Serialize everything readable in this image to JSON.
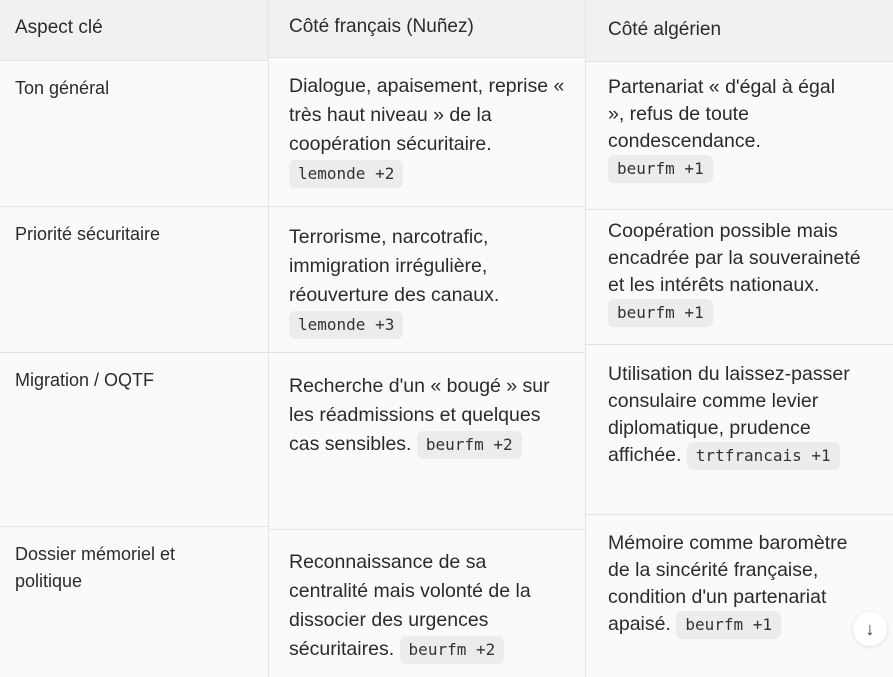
{
  "headers": [
    "Aspect clé",
    "Côté français (Nuñez)",
    "Côté algérien"
  ],
  "rows": [
    {
      "aspect": "Ton général",
      "fr": "Dialogue, apaisement, reprise « très haut niveau » de la coopération sécuritaire.",
      "fr_cite": "lemonde +2",
      "dz": "Partenariat « d'égal à égal », refus de toute condescendance.",
      "dz_cite": "beurfm +1"
    },
    {
      "aspect": "Priorité sécuritaire",
      "fr": "Terrorisme, narcotrafic, immigration irrégulière, réouverture des canaux.",
      "fr_cite": "lemonde +3",
      "dz": "Coopération possible mais encadrée par la souveraineté et les intérêts nationaux.",
      "dz_cite": "beurfm +1"
    },
    {
      "aspect": "Migration / OQTF",
      "fr": "Recherche d'un « bougé » sur les réadmissions et quelques cas sensibles.",
      "fr_cite": "beurfm +2",
      "dz": "Utilisation du laissez-passer consulaire comme levier diplomatique, prudence affichée.",
      "dz_cite": "trtfrancais +1"
    },
    {
      "aspect": "Dossier mémoriel et politique",
      "fr": "Reconnaissance de sa centralité mais volonté de la dissocier des urgences sécuritaires.",
      "fr_cite": "beurfm +2",
      "dz": "Mémoire comme baromètre de la sincérité française, condition d'un partenariat apaisé.",
      "dz_cite": "beurfm +1"
    }
  ],
  "scroll_button_icon": "arrow-down-icon"
}
